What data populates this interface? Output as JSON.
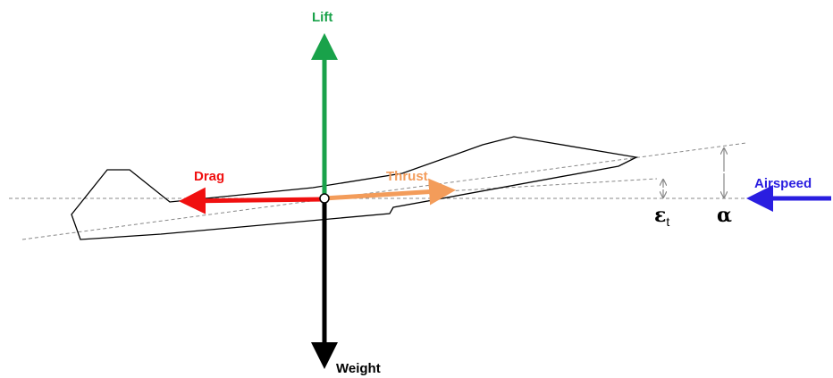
{
  "labels": {
    "lift": "Lift",
    "drag": "Drag",
    "thrust": "Thrust",
    "weight": "Weight",
    "airspeed": "Airspeed",
    "epsilon": "ε",
    "epsilon_sub": "t",
    "alpha": "α"
  }
}
